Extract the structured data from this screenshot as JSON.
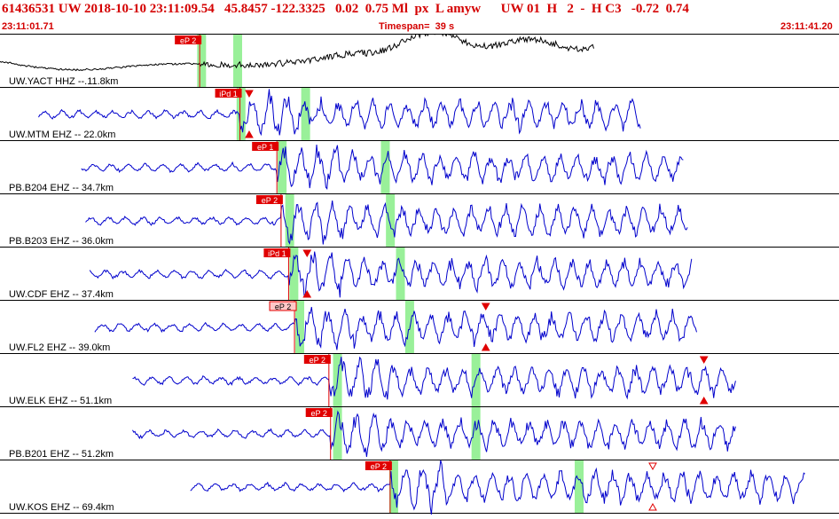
{
  "header": {
    "event_line": "61436531 UW 2018-10-10 23:11:09.54   45.8457 -122.3325   0.02  0.75 Ml  px  L amyw      UW 01  H   2  -  H C3   -0.72  0.74",
    "start_time": "23:11:01.71",
    "timespan": "Timespan=  39 s",
    "end_time": "23:11:41.20"
  },
  "colors": {
    "header_text": "#d40000",
    "trace_primary": "#000000",
    "trace": "#0000cc",
    "pick_box": "#e00000",
    "pick_box_light": "#ffc8c8",
    "window_band": "#99f099",
    "marker": "#e00000"
  },
  "chart_data": {
    "type": "seismogram",
    "time_range_s": [
      0,
      39
    ],
    "traces": [
      {
        "label": "UW.YACT HHZ --.11.8km",
        "pick": "eP 2",
        "pick_style": "solid",
        "pick_t": 23.8,
        "trace_start_t": 0.0,
        "trace_end_t": 70.9,
        "color_key": "trace_primary",
        "bands_t": [
          23.5,
          27.8
        ],
        "markers": []
      },
      {
        "label": "UW.MTM EHZ -- 22.0km",
        "pick": "iPd 1",
        "pick_style": "solid",
        "pick_t": 28.6,
        "trace_start_t": 4.6,
        "trace_end_t": 76.4,
        "color_key": "trace",
        "bands_t": [
          28.2,
          35.9
        ],
        "markers": [
          {
            "t": 29.7,
            "dir": "down",
            "pos": "top"
          },
          {
            "t": 29.7,
            "dir": "up",
            "pos": "bottom"
          }
        ]
      },
      {
        "label": "PB.B204 EHZ -- 34.7km",
        "pick": "eP 1",
        "pick_style": "solid",
        "pick_t": 33.0,
        "trace_start_t": 9.7,
        "trace_end_t": 81.5,
        "color_key": "trace",
        "bands_t": [
          33.1,
          45.4
        ],
        "markers": []
      },
      {
        "label": "PB.B203 EHZ -- 36.0km",
        "pick": "eP 2",
        "pick_style": "solid",
        "pick_t": 33.5,
        "trace_start_t": 10.2,
        "trace_end_t": 82.0,
        "color_key": "trace",
        "bands_t": [
          34.0,
          46.0
        ],
        "markers": []
      },
      {
        "label": "UW.CDF EHZ -- 37.4km",
        "pick": "iPd 1",
        "pick_style": "solid",
        "pick_t": 34.4,
        "trace_start_t": 10.7,
        "trace_end_t": 82.5,
        "color_key": "trace",
        "bands_t": [
          34.5,
          47.2
        ],
        "markers": [
          {
            "t": 36.6,
            "dir": "down",
            "pos": "top"
          },
          {
            "t": 36.6,
            "dir": "up",
            "pos": "bottom"
          }
        ]
      },
      {
        "label": "UW.FL2 EHZ -- 39.0km",
        "pick": "eP 2",
        "pick_style": "light",
        "pick_t": 35.1,
        "trace_start_t": 11.3,
        "trace_end_t": 83.1,
        "color_key": "trace",
        "bands_t": [
          35.2,
          48.3
        ],
        "markers": [
          {
            "t": 57.9,
            "dir": "down",
            "pos": "top"
          },
          {
            "t": 57.9,
            "dir": "up",
            "pos": "bottom"
          }
        ]
      },
      {
        "label": "UW.ELK EHZ -- 51.1km",
        "pick": "eP 2",
        "pick_style": "solid",
        "pick_t": 39.2,
        "trace_start_t": 15.8,
        "trace_end_t": 87.7,
        "color_key": "trace",
        "bands_t": [
          39.7,
          56.2
        ],
        "markers": [
          {
            "t": 83.9,
            "dir": "down",
            "pos": "top"
          },
          {
            "t": 83.9,
            "dir": "up",
            "pos": "bottom"
          }
        ]
      },
      {
        "label": "PB.B201 EHZ -- 51.2km",
        "pick": "eP 2",
        "pick_style": "solid",
        "pick_t": 39.4,
        "trace_start_t": 15.8,
        "trace_end_t": 87.7,
        "color_key": "trace",
        "bands_t": [
          39.7,
          56.2
        ],
        "markers": []
      },
      {
        "label": "UW.KOS EHZ -- 69.4km",
        "pick": "eP 2",
        "pick_style": "solid",
        "pick_t": 46.5,
        "trace_start_t": 22.7,
        "trace_end_t": 96.0,
        "color_key": "trace",
        "bands_t": [
          46.4,
          68.5
        ],
        "markers": [
          {
            "t": 77.8,
            "dir": "down-open",
            "pos": "top"
          },
          {
            "t": 77.8,
            "dir": "up-open",
            "pos": "bottom"
          }
        ]
      }
    ]
  }
}
